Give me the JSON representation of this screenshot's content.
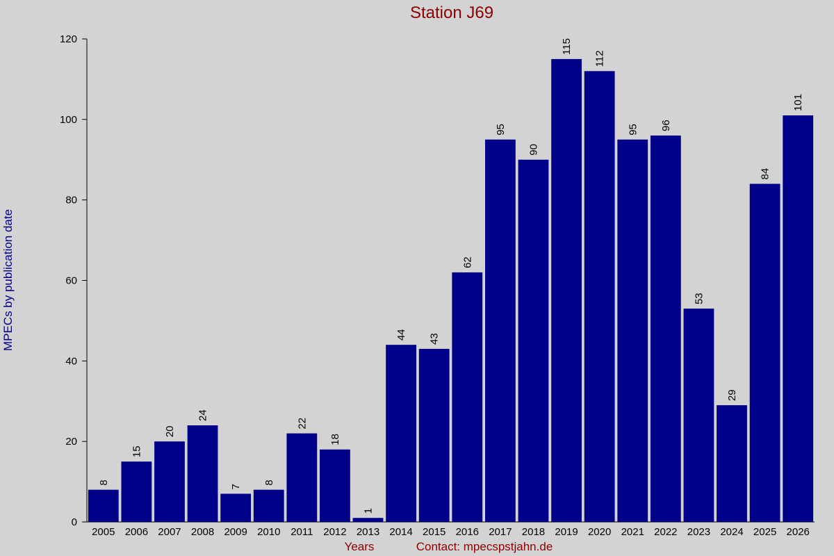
{
  "chart_data": {
    "type": "bar",
    "title": "Station J69",
    "y_label": "MPECs by publication date",
    "x_label": "Years",
    "annotation": "Contact: mpecspstjahn.de",
    "categories": [
      "2005",
      "2006",
      "2007",
      "2008",
      "2009",
      "2010",
      "2011",
      "2012",
      "2013",
      "2014",
      "2015",
      "2016",
      "2017",
      "2018",
      "2019",
      "2020",
      "2021",
      "2022",
      "2023",
      "2024",
      "2025",
      "2026"
    ],
    "values": [
      8,
      15,
      20,
      24,
      7,
      8,
      22,
      18,
      1,
      44,
      43,
      62,
      95,
      90,
      115,
      112,
      95,
      96,
      53,
      29,
      84,
      101
    ],
    "color": "#000088",
    "ylim": [
      0,
      120
    ],
    "yticks": [
      0,
      20,
      40,
      60,
      80,
      100,
      120
    ],
    "grid": false
  }
}
